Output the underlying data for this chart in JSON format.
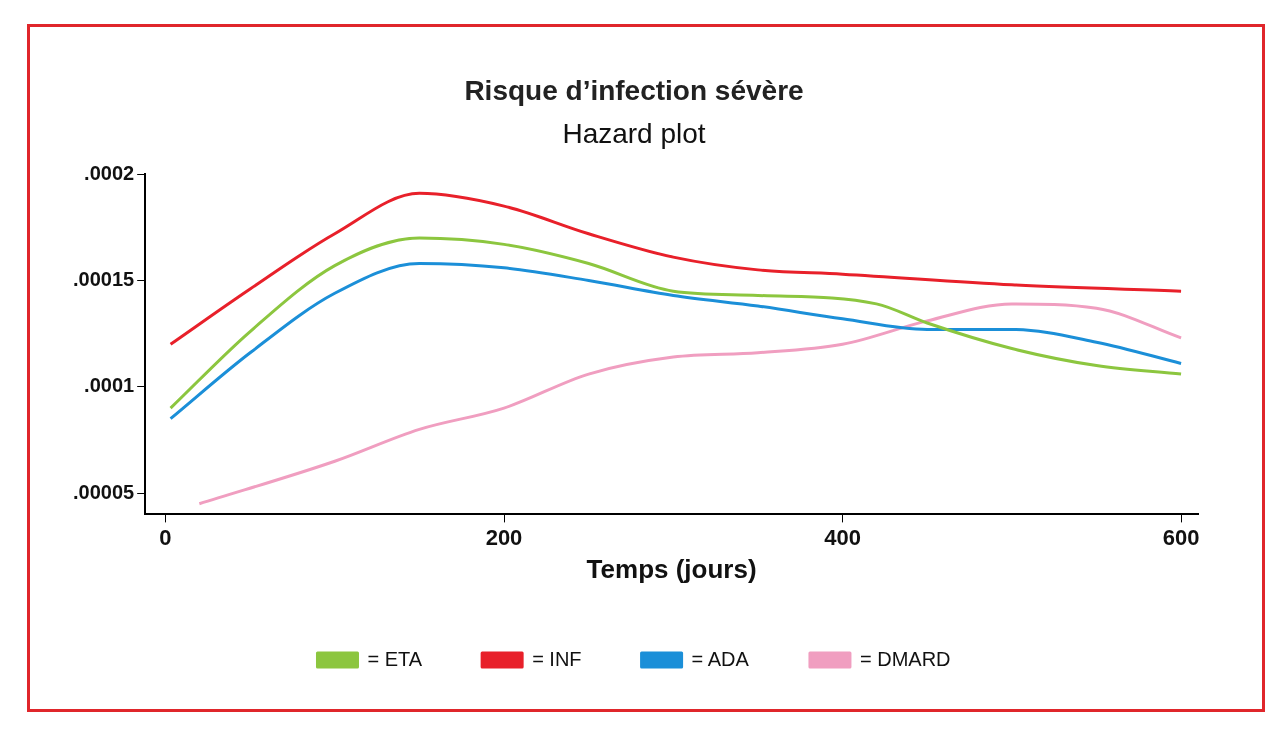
{
  "chart_data": {
    "type": "line",
    "title": "Risque d’infection sévère",
    "subtitle": "Hazard plot",
    "xlabel": "Temps (jours)",
    "xlim": [
      -12,
      610
    ],
    "xticks": [
      0,
      200,
      400,
      600
    ],
    "ylim": [
      4e-05,
      0.0002
    ],
    "yticks": [
      {
        "value": 5e-05,
        "label": ".00005"
      },
      {
        "value": 0.0001,
        "label": ".0001"
      },
      {
        "value": 0.00015,
        "label": ".00015"
      },
      {
        "value": 0.0002,
        "label": ".0002"
      }
    ],
    "grid": false,
    "legend": "bottom",
    "marker": "none",
    "line_style": "solid",
    "series": [
      {
        "name": "= ETA",
        "color": "#8cc63f",
        "x": [
          3,
          50,
          100,
          150,
          200,
          250,
          300,
          350,
          420,
          450,
          500,
          550,
          600
        ],
        "values": [
          9e-05,
          0.000126,
          0.000157,
          0.00017,
          0.000167,
          0.000158,
          0.000145,
          0.000143,
          0.000139,
          0.00013,
          0.000118,
          0.00011,
          0.000106
        ]
      },
      {
        "name": "= INF",
        "color": "#e8202a",
        "x": [
          3,
          50,
          100,
          150,
          200,
          250,
          300,
          350,
          400,
          500,
          600
        ],
        "values": [
          0.00012,
          0.000146,
          0.000172,
          0.000191,
          0.000185,
          0.000172,
          0.000161,
          0.000155,
          0.000153,
          0.000148,
          0.000145
        ]
      },
      {
        "name": "= ADA",
        "color": "#1b8fd8",
        "x": [
          3,
          50,
          100,
          150,
          200,
          250,
          300,
          350,
          400,
          450,
          500,
          550,
          600
        ],
        "values": [
          8.5e-05,
          0.000116,
          0.000144,
          0.000158,
          0.000156,
          0.00015,
          0.000143,
          0.000138,
          0.000132,
          0.000127,
          0.000127,
          0.000121,
          0.000111
        ]
      },
      {
        "name": "= DMARD",
        "color": "#f09ec0",
        "x": [
          20,
          100,
          150,
          200,
          250,
          300,
          350,
          400,
          450,
          500,
          550,
          600
        ],
        "values": [
          4.5e-05,
          6.5e-05,
          8e-05,
          9e-05,
          0.000106,
          0.000114,
          0.000116,
          0.00012,
          0.000131,
          0.000139,
          0.000137,
          0.000123
        ]
      }
    ]
  }
}
